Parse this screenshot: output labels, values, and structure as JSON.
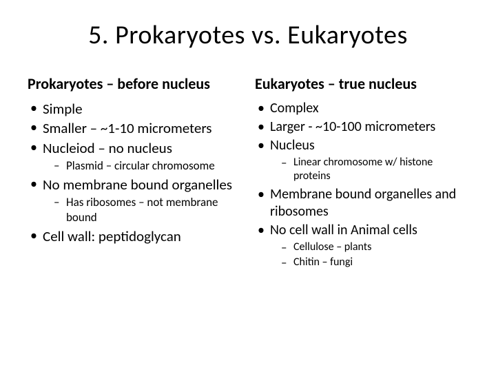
{
  "slide": {
    "title": "5. Prokaryotes vs. Eukaryotes",
    "background_color": "#ffffff",
    "text_color": "#000000",
    "title_fontsize": 38,
    "heading_fontsize": 22,
    "bullet_fontsize": 21,
    "subbullet_fontsize": 17
  },
  "left": {
    "heading": "Prokaryotes – before nucleus",
    "items": {
      "i0": "Simple",
      "i1": "Smaller – ~1-10 micrometers",
      "i2": "Nucleiod – no nucleus",
      "i2_sub": {
        "s0": "Plasmid – circular chromosome"
      },
      "i3": "No membrane bound organelles",
      "i3_sub": {
        "s0": "Has ribosomes – not membrane bound"
      },
      "i4": "Cell wall:  peptidoglycan"
    }
  },
  "right": {
    "heading": "Eukaryotes – true nucleus",
    "items": {
      "i0": "Complex",
      "i1": "Larger - ~10-100 micrometers",
      "i2": "Nucleus",
      "i2_sub": {
        "s0": "Linear chromosome w/ histone proteins"
      },
      "i3": "Membrane bound organelles and ribosomes",
      "i4": "No cell wall in Animal cells",
      "i4_sub": {
        "s0": "Cellulose – plants",
        "s1": "Chitin – fungi"
      }
    }
  }
}
